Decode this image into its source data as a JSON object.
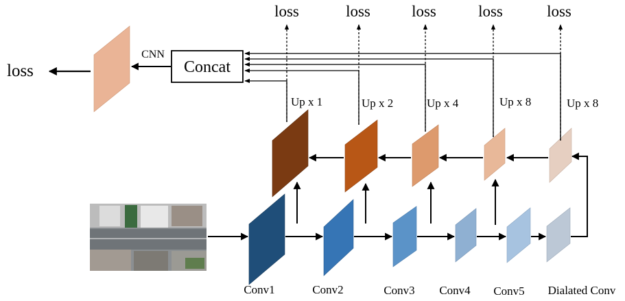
{
  "concat_label": "Concat",
  "cnn_label": "CNN",
  "loss_label": "loss",
  "top_losses": [
    "loss",
    "loss",
    "loss",
    "loss",
    "loss"
  ],
  "up_labels": [
    "Up x 1",
    "Up x 2",
    "Up x 4",
    "Up x 8",
    "Up x 8"
  ],
  "conv_labels": [
    "Conv1",
    "Conv2",
    "Conv3",
    "Conv4",
    "Conv5",
    "Dialated Conv"
  ],
  "colors": {
    "conv": [
      "#1f4e79",
      "#3675b5",
      "#5b93c8",
      "#8fb0d2",
      "#a7c3e0",
      "#bcc8d6"
    ],
    "up": [
      "#7a3a12",
      "#b85716",
      "#dd9a6d",
      "#e8b899",
      "#e6cfc1"
    ],
    "final": "#eab496"
  }
}
